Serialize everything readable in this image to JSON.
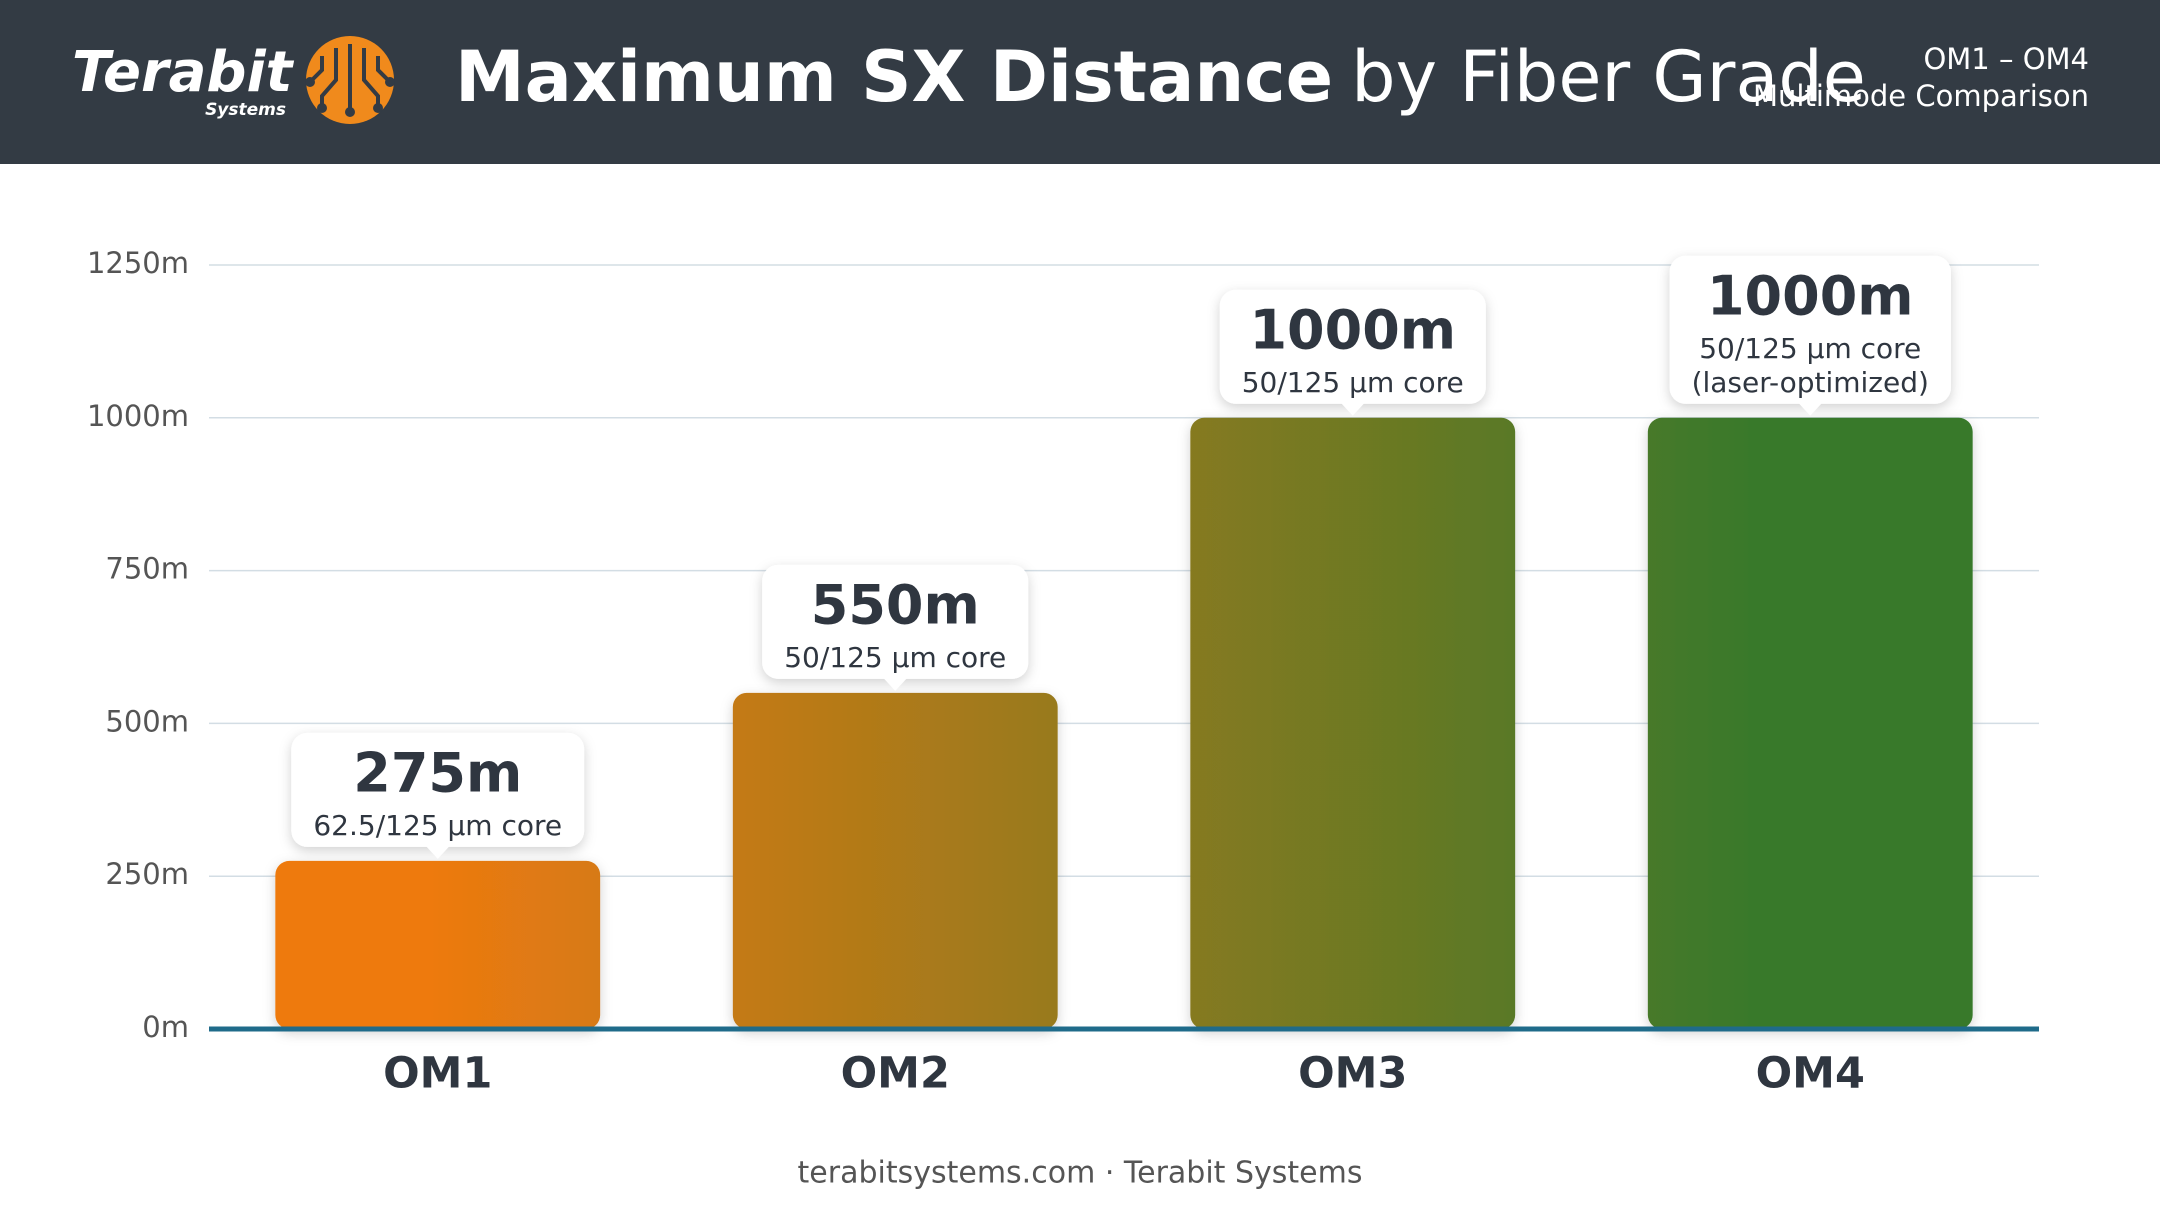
{
  "brand": {
    "name": "Terabit",
    "tagline": "Systems"
  },
  "chart_data": {
    "type": "bar",
    "title": [
      "Maximum SX Distance",
      "by Fiber Grade"
    ],
    "subtitle": [
      "OM1 – OM4",
      "Multimode Comparison"
    ],
    "categories": [
      "OM1",
      "OM2",
      "OM3",
      "OM4"
    ],
    "values": [
      275,
      550,
      1000,
      1000
    ],
    "value_labels": [
      "275m",
      "550m",
      "1000m",
      "1000m"
    ],
    "core_labels": [
      [
        "62.5/125 µm core"
      ],
      [
        "50/125 µm core"
      ],
      [
        "50/125 µm core"
      ],
      [
        "50/125 µm core",
        "(laser-optimized)"
      ]
    ],
    "gradient": [
      "#ee7a10",
      "#37792b"
    ],
    "ylim": [
      0,
      1250
    ],
    "yticks": [
      {
        "value": 0,
        "label": "0m"
      },
      {
        "value": 250,
        "label": "250m"
      },
      {
        "value": 500,
        "label": "500m"
      },
      {
        "value": 750,
        "label": "750m"
      },
      {
        "value": 1000,
        "label": "1000m"
      },
      {
        "value": 1250,
        "label": "1250m"
      }
    ],
    "grid": true
  },
  "footer": "terabitsystems.com · Terabit Systems"
}
